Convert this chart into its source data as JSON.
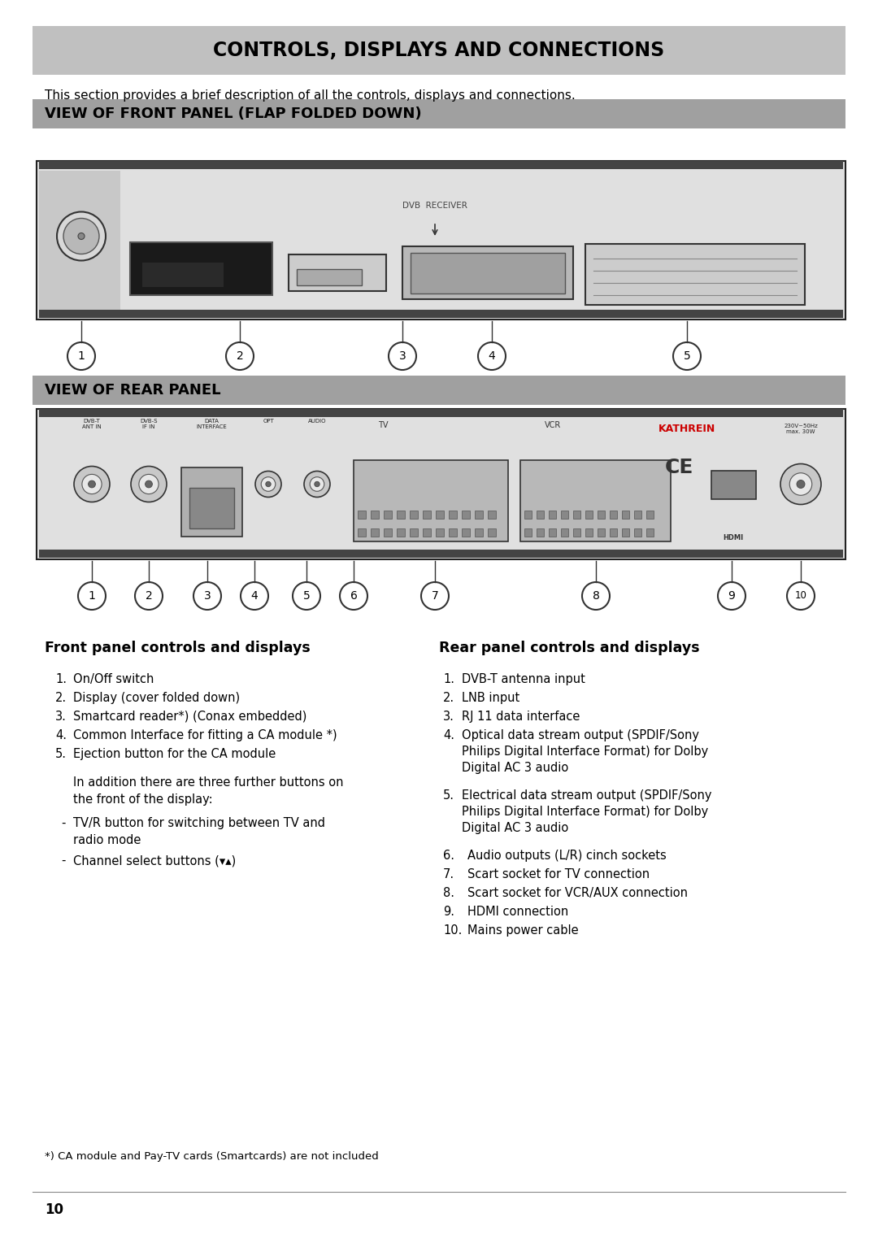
{
  "page_bg": "#ffffff",
  "title": "CONTROLS, DISPLAYS AND CONNECTIONS",
  "title_bg": "#c0c0c0",
  "title_color": "#000000",
  "intro_text": "This section provides a brief description of all the controls, displays and connections.",
  "section1_title": "VIEW OF FRONT PANEL (FLAP FOLDED DOWN)",
  "section1_bg": "#a0a0a0",
  "section2_title": "VIEW OF REAR PANEL",
  "section2_bg": "#a0a0a0",
  "front_panel_heading": "Front panel controls and displays",
  "rear_panel_heading": "Rear panel controls and displays",
  "front_panel_items": [
    "On/Off switch",
    "Display (cover folded down)",
    "Smartcard reader*) (Conax embedded)",
    "Common Interface for fitting a CA module *)",
    "Ejection button for the CA module"
  ],
  "rear_panel_items": [
    "DVB-T antenna input",
    "LNB input",
    "RJ 11 data interface",
    "Optical data stream output (SPDIF/Sony Philips Digital Interface Format) for Dolby Digital AC 3 audio",
    "Electrical data stream output (SPDIF/Sony Philips Digital Interface Format) for Dolby Digital AC 3 audio",
    "Audio outputs (L/R) cinch sockets",
    "Scart socket for TV connection",
    "Scart socket for VCR/AUX connection",
    "HDMI connection",
    "Mains power cable"
  ],
  "footnote": "*) CA module and Pay-TV cards (Smartcards) are not included",
  "page_number": "10"
}
